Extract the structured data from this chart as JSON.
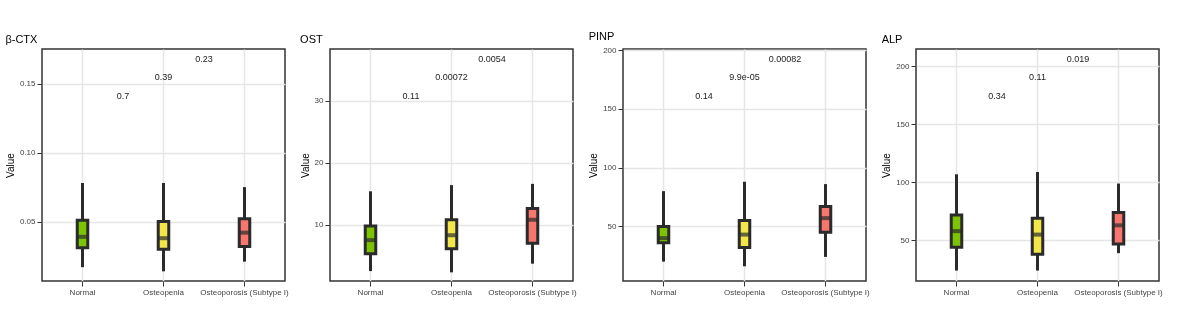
{
  "chart_data": [
    {
      "type": "box",
      "title": "β-CTX",
      "ylabel": "Value",
      "categories": [
        "Normal",
        "Osteopenia",
        "Osteoporosis (Subtype I)"
      ],
      "colors": [
        "#7cc400",
        "#f2e64b",
        "#f8766d"
      ],
      "boxes": [
        {
          "low": 0.017,
          "q1": 0.031,
          "median": 0.039,
          "q3": 0.051,
          "high": 0.078
        },
        {
          "low": 0.014,
          "q1": 0.03,
          "median": 0.038,
          "q3": 0.05,
          "high": 0.078
        },
        {
          "low": 0.021,
          "q1": 0.032,
          "median": 0.042,
          "q3": 0.052,
          "high": 0.075
        }
      ],
      "ylim": [
        0.007,
        0.175
      ],
      "yticks": [
        0.05,
        {
          "value": 0.1,
          "label": "0.10"
        },
        0.15
      ],
      "grid": true,
      "annotations": [
        "0.7",
        "0.39",
        "0.23"
      ]
    },
    {
      "type": "box",
      "title": "OST",
      "ylabel": "Value",
      "categories": [
        "Normal",
        "Osteopenia",
        "Osteoporosis (Subtype I)"
      ],
      "colors": [
        "#7cc400",
        "#f2e64b",
        "#f8766d"
      ],
      "boxes": [
        {
          "low": 2.5,
          "q1": 5.3,
          "median": 7.5,
          "q3": 9.8,
          "high": 15.4
        },
        {
          "low": 2.3,
          "q1": 6.1,
          "median": 8.3,
          "q3": 10.8,
          "high": 16.4
        },
        {
          "low": 3.7,
          "q1": 7.0,
          "median": 10.8,
          "q3": 12.6,
          "high": 16.6
        }
      ],
      "ylim": [
        0.9,
        38.4
      ],
      "yticks": [
        10,
        20,
        30
      ],
      "grid": true,
      "annotations": [
        "0.11",
        "0.00072",
        "0.0054"
      ]
    },
    {
      "type": "box",
      "title": "PINP",
      "ylabel": "Value",
      "categories": [
        "Normal",
        "Osteopenia",
        "Osteoporosis (Subtype I)"
      ],
      "colors": [
        "#7cc400",
        "#f2e64b",
        "#f8766d"
      ],
      "boxes": [
        {
          "low": 20,
          "q1": 36,
          "median": 40,
          "q3": 50,
          "high": 80
        },
        {
          "low": 16,
          "q1": 32,
          "median": 43,
          "q3": 55,
          "high": 88
        },
        {
          "low": 24,
          "q1": 45,
          "median": 57,
          "q3": 67,
          "high": 86
        }
      ],
      "ylim": [
        3.5,
        201
      ],
      "yticks": [
        50,
        100,
        150,
        200
      ],
      "grid": true,
      "annotations": [
        "0.14",
        "9.9e-05",
        "0.00082"
      ]
    },
    {
      "type": "box",
      "title": "ALP",
      "ylabel": "Value",
      "categories": [
        "Normal",
        "Osteopenia",
        "Osteoporosis (Subtype I)"
      ],
      "colors": [
        "#7cc400",
        "#f2e64b",
        "#f8766d"
      ],
      "boxes": [
        {
          "low": 24,
          "q1": 44,
          "median": 58,
          "q3": 72,
          "high": 107
        },
        {
          "low": 24,
          "q1": 38,
          "median": 55,
          "q3": 69,
          "high": 109
        },
        {
          "low": 39,
          "q1": 47,
          "median": 63,
          "q3": 74,
          "high": 99
        }
      ],
      "ylim": [
        15,
        215
      ],
      "yticks": [
        50,
        100,
        150,
        200
      ],
      "grid": true,
      "annotations": [
        "0.34",
        "0.11",
        "0.019"
      ]
    }
  ]
}
